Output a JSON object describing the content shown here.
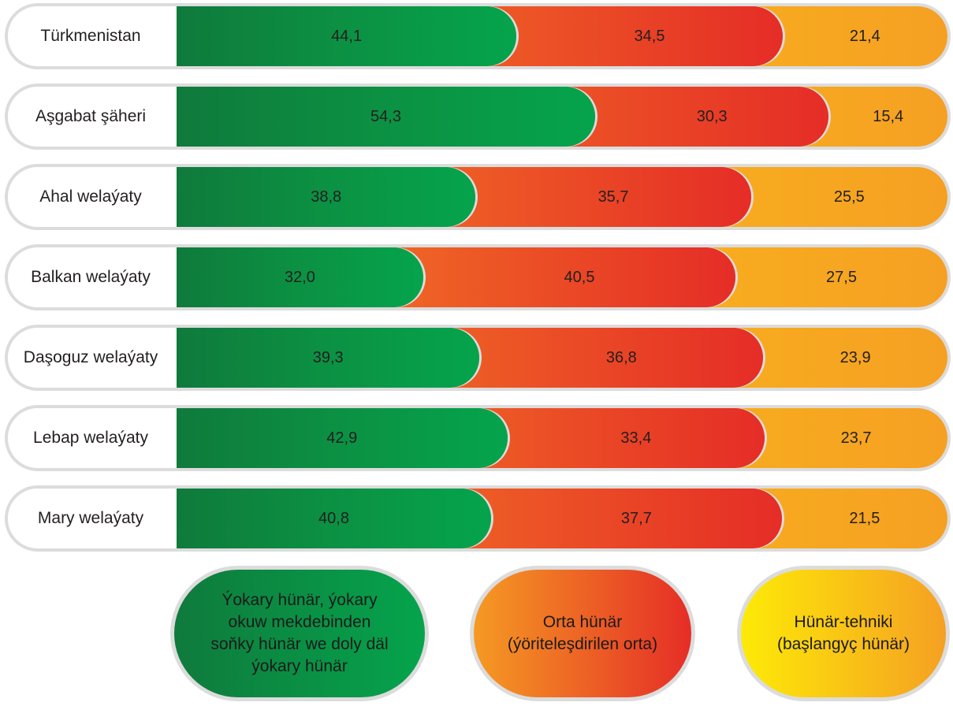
{
  "chart_data": {
    "type": "bar",
    "stacked": true,
    "orientation": "horizontal",
    "unit": "percent",
    "categories": [
      "Türkmenistan",
      "Aşgabat şäheri",
      "Ahal  welaýaty",
      "Balkan  welaýaty",
      "Daşoguz  welaýaty",
      "Lebap welaýaty",
      "Mary welaýaty"
    ],
    "value_labels": {
      "green": [
        "44,1",
        "54,3",
        "38,8",
        "32,0",
        "39,3",
        "42,9",
        "40,8"
      ],
      "orange": [
        "34,5",
        "30,3",
        "35,7",
        "40,5",
        "36,8",
        "33,4",
        "37,7"
      ],
      "yellow": [
        "21,4",
        "15,4",
        "25,5",
        "27,5",
        "23,9",
        "23,7",
        "21,5"
      ]
    },
    "series": [
      {
        "name": "Ýokary hünär, ýokary\nokuw mekdebinden\nsoňky hünär we doly däl\nýokary hünär",
        "key": "green",
        "color": "#0c8f42",
        "values": [
          44.1,
          54.3,
          38.8,
          32.0,
          39.3,
          42.9,
          40.8
        ]
      },
      {
        "name": "Orta hünär\n(ýöriteleşdirilen orta)",
        "key": "orange",
        "color": "#ee6025",
        "values": [
          34.5,
          30.3,
          35.7,
          40.5,
          36.8,
          33.4,
          37.7
        ]
      },
      {
        "name": "Hünär-tehniki\n(başlangyç hünär)",
        "key": "yellow",
        "color": "#f9b21c",
        "values": [
          21.4,
          15.4,
          25.5,
          27.5,
          23.9,
          23.7,
          21.5
        ]
      }
    ],
    "xlim": [
      0,
      100
    ],
    "legend_position": "bottom-right"
  }
}
